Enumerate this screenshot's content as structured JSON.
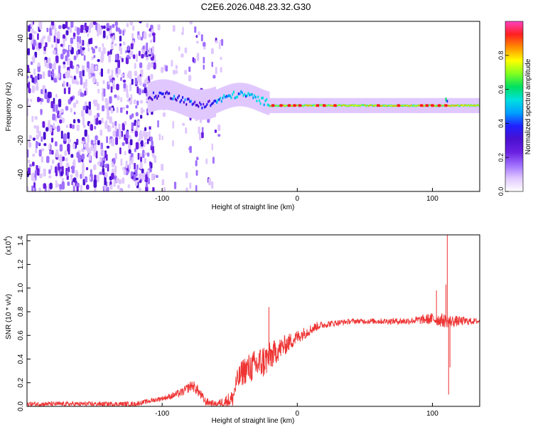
{
  "title": "C2E6.2026.048.23.32.G30",
  "colors": {
    "line": "#ee3333",
    "colormap": [
      "#ffffff",
      "#e0c8ff",
      "#a070ff",
      "#6a20e0",
      "#4a10d0",
      "#2020ff",
      "#00a0ff",
      "#00e0e0",
      "#00e060",
      "#80ff20",
      "#ffff00",
      "#ff9000",
      "#ff2020",
      "#ff40c0"
    ]
  },
  "chart_data": [
    {
      "type": "heatmap",
      "name": "spectrogram",
      "xlabel": "Height of straight line (km)",
      "ylabel": "Frequency (Hz)",
      "xlim": [
        -200,
        135
      ],
      "ylim": [
        -50,
        50
      ],
      "xticks": [
        {
          "value": -100,
          "label": "-100"
        },
        {
          "value": 0,
          "label": "0"
        },
        {
          "value": 100,
          "label": "100"
        }
      ],
      "yticks": [
        {
          "value": -40,
          "label": "-40"
        },
        {
          "value": -20,
          "label": "-20"
        },
        {
          "value": 0,
          "label": "0"
        },
        {
          "value": 20,
          "label": "20"
        },
        {
          "value": 40,
          "label": "40"
        }
      ],
      "colorbar": {
        "label": "Normalized spectral amplitude",
        "range": [
          0,
          1
        ],
        "ticks": [
          {
            "value": 0.0,
            "label": "0.0"
          },
          {
            "value": 0.2,
            "label": "0.2"
          },
          {
            "value": 0.4,
            "label": "0.4"
          },
          {
            "value": 0.6,
            "label": "0.6"
          },
          {
            "value": 0.8,
            "label": "0.8"
          }
        ]
      },
      "regions": [
        {
          "from_km": -200,
          "to_km": -105,
          "description": "broadband noise",
          "amplitude": [
            0.05,
            0.2
          ]
        },
        {
          "from_km": -105,
          "to_km": -55,
          "description": "noise burst plus emerging signal near 0-10 Hz",
          "amplitude": [
            0.1,
            0.35
          ]
        },
        {
          "from_km": -55,
          "to_km": -20,
          "description": "signal band near 5 Hz",
          "amplitude": [
            0.3,
            0.55
          ]
        },
        {
          "from_km": -20,
          "to_km": 135,
          "description": "narrow band at 0 Hz",
          "amplitude": [
            0.4,
            0.95
          ]
        }
      ]
    },
    {
      "type": "line",
      "name": "snr",
      "xlabel": "Height of straight line (km)",
      "ylabel": "SNR (10 * v/v)",
      "exponent_label": "(x10",
      "exponent": "4",
      "xlim": [
        -200,
        135
      ],
      "ylim": [
        0,
        1.45
      ],
      "xticks": [
        {
          "value": -100,
          "label": "-100"
        },
        {
          "value": 0,
          "label": "0"
        },
        {
          "value": 100,
          "label": "100"
        }
      ],
      "yticks": [
        {
          "value": 0.0,
          "label": "0.0"
        },
        {
          "value": 0.2,
          "label": "0.2"
        },
        {
          "value": 0.4,
          "label": "0.4"
        },
        {
          "value": 0.6,
          "label": "0.6"
        },
        {
          "value": 0.8,
          "label": "0.8"
        },
        {
          "value": 1.0,
          "label": "1.0"
        },
        {
          "value": 1.2,
          "label": "1.2"
        },
        {
          "value": 1.4,
          "label": "1.4"
        }
      ],
      "baseline": [
        [
          -200,
          0.02
        ],
        [
          -120,
          0.02
        ],
        [
          -95,
          0.08
        ],
        [
          -85,
          0.12
        ],
        [
          -78,
          0.18
        ],
        [
          -74,
          0.14
        ],
        [
          -68,
          0.04
        ],
        [
          -60,
          0.02
        ],
        [
          -48,
          0.06
        ],
        [
          -45,
          0.2
        ],
        [
          -40,
          0.3
        ],
        [
          -30,
          0.35
        ],
        [
          -22,
          0.4
        ],
        [
          -15,
          0.47
        ],
        [
          -5,
          0.55
        ],
        [
          2,
          0.6
        ],
        [
          15,
          0.68
        ],
        [
          25,
          0.7
        ],
        [
          40,
          0.72
        ],
        [
          80,
          0.72
        ],
        [
          100,
          0.74
        ],
        [
          112,
          0.72
        ],
        [
          135,
          0.72
        ]
      ],
      "noise_amp": [
        [
          -200,
          0.02
        ],
        [
          -100,
          0.02
        ],
        [
          -90,
          0.03
        ],
        [
          -75,
          0.05
        ],
        [
          -60,
          0.02
        ],
        [
          -48,
          0.08
        ],
        [
          -40,
          0.12
        ],
        [
          -25,
          0.15
        ],
        [
          -15,
          0.1
        ],
        [
          0,
          0.06
        ],
        [
          20,
          0.03
        ],
        [
          40,
          0.02
        ],
        [
          85,
          0.03
        ],
        [
          100,
          0.05
        ],
        [
          108,
          0.06
        ],
        [
          135,
          0.02
        ]
      ],
      "spikes": [
        {
          "x": -21,
          "y": 0.84
        },
        {
          "x": 111,
          "y": 1.45
        },
        {
          "x": 112,
          "y": 0.1
        },
        {
          "x": 110,
          "y": 1.03
        },
        {
          "x": 113,
          "y": 0.33
        },
        {
          "x": 103,
          "y": 0.98
        }
      ]
    }
  ]
}
